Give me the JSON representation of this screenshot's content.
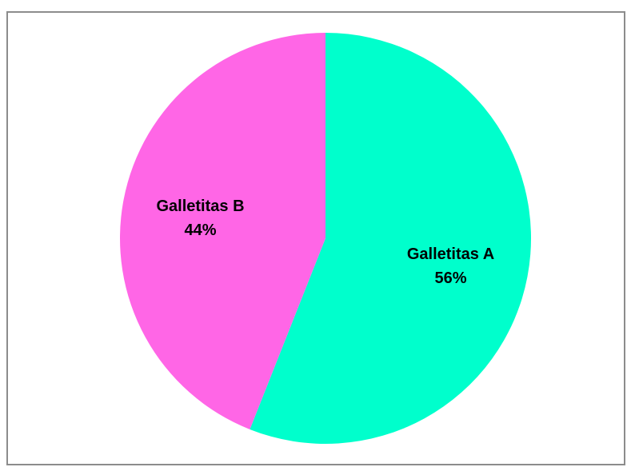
{
  "chart_data": {
    "type": "pie",
    "title": "",
    "slices": [
      {
        "label": "Galletitas A",
        "value": 56,
        "percent_label": "56%",
        "color": "#00FFCC"
      },
      {
        "label": "Galletitas B",
        "value": 44,
        "percent_label": "44%",
        "color": "#FF66E6"
      }
    ],
    "start_angle_deg": 0,
    "direction": "clockwise",
    "legend": "none"
  }
}
